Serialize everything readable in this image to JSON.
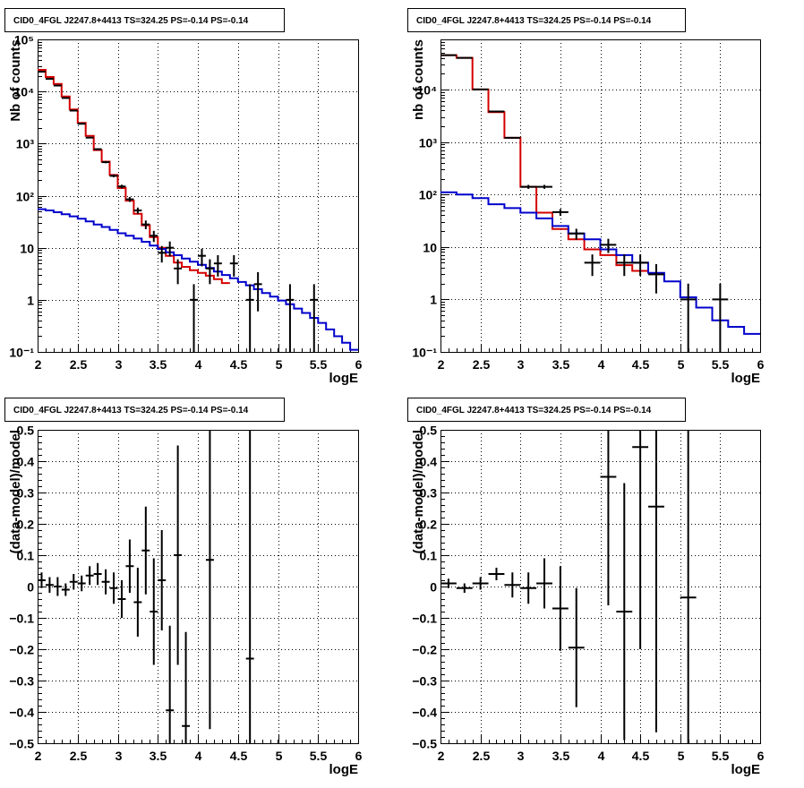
{
  "chart_data": [
    {
      "type": "step",
      "title": "CID0_4FGL J2247.8+4413 TS=324.25 PS=-0.14 PS=-0.14",
      "xlabel": "logE",
      "ylabel": "Nb of counts",
      "xlim": [
        2,
        6
      ],
      "ylim": [
        0.1,
        100000
      ],
      "yscale": "log",
      "grid": true,
      "xticks": [
        "2",
        "2.5",
        "3",
        "3.5",
        "4",
        "4.5",
        "5",
        "5.5",
        "6"
      ],
      "yticks": [
        {
          "v": 0.1,
          "label": "10⁻¹"
        },
        {
          "v": 1,
          "label": "1"
        },
        {
          "v": 10,
          "label": "10"
        },
        {
          "v": 100,
          "label": "10²"
        },
        {
          "v": 1000,
          "label": "10³"
        },
        {
          "v": 10000,
          "label": "10⁴"
        },
        {
          "v": 100000,
          "label": "10⁵"
        }
      ],
      "bin_edges": [
        2.0,
        2.1,
        2.2,
        2.3,
        2.4,
        2.5,
        2.6,
        2.7,
        2.8,
        2.9,
        3.0,
        3.1,
        3.2,
        3.3,
        3.4,
        3.5,
        3.6,
        3.7,
        3.8,
        3.9,
        4.0,
        4.1,
        4.2,
        4.3,
        4.4,
        4.5,
        4.6,
        4.7,
        4.8,
        4.9,
        5.0,
        5.1,
        5.2,
        5.3,
        5.4,
        5.5,
        5.6,
        5.7,
        5.8,
        5.9,
        6.0
      ],
      "series": [
        {
          "color": "#d40000",
          "values": [
            26000,
            19000,
            14000,
            8000,
            4500,
            2500,
            1400,
            750,
            450,
            250,
            140,
            80,
            45,
            27,
            16,
            10,
            7,
            5.2,
            4.3,
            3.7,
            3.3,
            2.9,
            2.5,
            2.1
          ]
        },
        {
          "color": "#0000cc",
          "values": [
            55,
            52,
            48,
            44,
            40,
            36,
            32,
            28,
            25,
            22,
            19,
            17,
            15,
            13,
            11,
            9.5,
            8.2,
            7.2,
            6.2,
            5.4,
            4.7,
            4.1,
            3.5,
            3.0,
            2.6,
            2.2,
            1.9,
            1.6,
            1.35,
            1.15,
            0.97,
            0.82,
            0.68,
            0.56,
            0.45,
            0.36,
            0.27,
            0.2,
            0.15,
            0.11
          ]
        }
      ],
      "points": [
        {
          "x": 2.05,
          "y": 24000,
          "ey": 160
        },
        {
          "x": 2.15,
          "y": 17500,
          "ey": 130
        },
        {
          "x": 2.25,
          "y": 13000,
          "ey": 115
        },
        {
          "x": 2.35,
          "y": 7500,
          "ey": 85
        },
        {
          "x": 2.45,
          "y": 4300,
          "ey": 65
        },
        {
          "x": 2.55,
          "y": 2400,
          "ey": 50
        },
        {
          "x": 2.65,
          "y": 1300,
          "ey": 36
        },
        {
          "x": 2.75,
          "y": 780,
          "ey": 28
        },
        {
          "x": 2.85,
          "y": 440,
          "ey": 21
        },
        {
          "x": 2.95,
          "y": 240,
          "ey": 15
        },
        {
          "x": 3.05,
          "y": 150,
          "ey": 12
        },
        {
          "x": 3.15,
          "y": 85,
          "ey": 9
        },
        {
          "x": 3.25,
          "y": 52,
          "ey": 7
        },
        {
          "x": 3.35,
          "y": 28,
          "ey": 5.3
        },
        {
          "x": 3.45,
          "y": 17,
          "ey": 4.1
        },
        {
          "x": 3.55,
          "y": 8,
          "ey": 2.8
        },
        {
          "x": 3.65,
          "y": 10,
          "ey": 3.2
        },
        {
          "x": 3.75,
          "y": 4,
          "ey": 2
        },
        {
          "x": 3.95,
          "y": 1,
          "ey": 1
        },
        {
          "x": 4.05,
          "y": 7,
          "ey": 2.6
        },
        {
          "x": 4.15,
          "y": 4,
          "ey": 2
        },
        {
          "x": 4.25,
          "y": 5,
          "ey": 2.2
        },
        {
          "x": 4.45,
          "y": 5,
          "ey": 2.2
        },
        {
          "x": 4.65,
          "y": 1,
          "ey": 1
        },
        {
          "x": 4.75,
          "y": 2,
          "ey": 1.4
        },
        {
          "x": 5.15,
          "y": 1,
          "ey": 1
        },
        {
          "x": 5.45,
          "y": 1,
          "ey": 1
        }
      ],
      "point_hw": 0.05
    },
    {
      "type": "step",
      "title": "CID0_4FGL J2247.8+4413 TS=324.25 PS=-0.14 PS=-0.14",
      "xlabel": "logE",
      "ylabel": "nb of counts",
      "xlim": [
        2,
        6
      ],
      "ylim": [
        0.1,
        90000
      ],
      "yscale": "log",
      "grid": true,
      "xticks": [
        "2",
        "2.5",
        "3",
        "3.5",
        "4",
        "4.5",
        "5",
        "5.5",
        "6"
      ],
      "yticks": [
        {
          "v": 0.1,
          "label": "10⁻¹"
        },
        {
          "v": 1,
          "label": "1"
        },
        {
          "v": 10,
          "label": "10"
        },
        {
          "v": 100,
          "label": "10²"
        },
        {
          "v": 1000,
          "label": "10³"
        },
        {
          "v": 10000,
          "label": "10⁴"
        }
      ],
      "bin_edges": [
        2.0,
        2.2,
        2.4,
        2.6,
        2.8,
        3.0,
        3.2,
        3.4,
        3.6,
        3.8,
        4.0,
        4.2,
        4.4,
        4.6,
        4.8,
        5.0,
        5.2,
        5.4,
        5.6,
        5.8,
        6.0
      ],
      "series": [
        {
          "color": "#d40000",
          "values": [
            45000,
            40000,
            10000,
            3700,
            1200,
            140,
            45,
            22,
            14,
            9,
            7,
            4.5,
            3.5
          ]
        },
        {
          "color": "#0000cc",
          "values": [
            110,
            100,
            85,
            65,
            55,
            45,
            35,
            25,
            18,
            14,
            9,
            7,
            5,
            3.2,
            2.2,
            1.1,
            0.7,
            0.4,
            0.3,
            0.22
          ]
        }
      ],
      "points": [
        {
          "x": 2.1,
          "y": 45000,
          "ey": 212
        },
        {
          "x": 2.3,
          "y": 40000,
          "ey": 200
        },
        {
          "x": 2.5,
          "y": 10000,
          "ey": 100
        },
        {
          "x": 2.7,
          "y": 3800,
          "ey": 62
        },
        {
          "x": 2.9,
          "y": 1200,
          "ey": 35
        },
        {
          "x": 3.1,
          "y": 140,
          "ey": 12
        },
        {
          "x": 3.3,
          "y": 140,
          "ey": 12
        },
        {
          "x": 3.5,
          "y": 46,
          "ey": 6.8
        },
        {
          "x": 3.7,
          "y": 18,
          "ey": 4.2
        },
        {
          "x": 3.9,
          "y": 5,
          "ey": 2.2
        },
        {
          "x": 4.1,
          "y": 11,
          "ey": 3.3
        },
        {
          "x": 4.3,
          "y": 5,
          "ey": 2.2
        },
        {
          "x": 4.5,
          "y": 5,
          "ey": 2.2
        },
        {
          "x": 4.7,
          "y": 3,
          "ey": 1.7
        },
        {
          "x": 5.1,
          "y": 1,
          "ey": 1
        },
        {
          "x": 5.5,
          "y": 1,
          "ey": 1
        }
      ],
      "point_hw": 0.1
    },
    {
      "type": "scatter",
      "title": "CID0_4FGL J2247.8+4413 TS=324.25 PS=-0.14 PS=-0.14",
      "xlabel": "logE",
      "ylabel": "(data-model)/model",
      "xlim": [
        2,
        6
      ],
      "ylim": [
        -0.5,
        0.5
      ],
      "yscale": "linear",
      "grid": true,
      "xticks": [
        "2",
        "2.5",
        "3",
        "3.5",
        "4",
        "4.5",
        "5",
        "5.5",
        "6"
      ],
      "yticks": [
        {
          "v": -0.5,
          "label": "−0.5"
        },
        {
          "v": -0.4,
          "label": "−0.4"
        },
        {
          "v": -0.3,
          "label": "−0.3"
        },
        {
          "v": -0.2,
          "label": "−0.2"
        },
        {
          "v": -0.1,
          "label": "−0.1"
        },
        {
          "v": 0,
          "label": "0"
        },
        {
          "v": 0.1,
          "label": "0.1"
        },
        {
          "v": 0.2,
          "label": "0.2"
        },
        {
          "v": 0.3,
          "label": "0.3"
        },
        {
          "v": 0.4,
          "label": "0.4"
        },
        {
          "v": 0.5,
          "label": "0.5"
        }
      ],
      "points": [
        {
          "x": 2.05,
          "y": 0.02,
          "ey": 0.025
        },
        {
          "x": 2.15,
          "y": 0.005,
          "ey": 0.025
        },
        {
          "x": 2.25,
          "y": 0.0,
          "ey": 0.03
        },
        {
          "x": 2.35,
          "y": -0.01,
          "ey": 0.02
        },
        {
          "x": 2.45,
          "y": 0.015,
          "ey": 0.025
        },
        {
          "x": 2.55,
          "y": 0.01,
          "ey": 0.025
        },
        {
          "x": 2.65,
          "y": 0.035,
          "ey": 0.03
        },
        {
          "x": 2.75,
          "y": 0.04,
          "ey": 0.035
        },
        {
          "x": 2.85,
          "y": 0.015,
          "ey": 0.04
        },
        {
          "x": 2.95,
          "y": -0.005,
          "ey": 0.05
        },
        {
          "x": 3.05,
          "y": -0.04,
          "ey": 0.06
        },
        {
          "x": 3.15,
          "y": 0.065,
          "ey": 0.085
        },
        {
          "x": 3.25,
          "y": -0.05,
          "ey": 0.11
        },
        {
          "x": 3.35,
          "y": 0.115,
          "ey": 0.14
        },
        {
          "x": 3.45,
          "y": -0.08,
          "ey": 0.17
        },
        {
          "x": 3.55,
          "y": 0.02,
          "ey": 0.16
        },
        {
          "x": 3.65,
          "y": -0.395,
          "ey": 0.27
        },
        {
          "x": 3.75,
          "y": 0.1,
          "ey": 0.35
        },
        {
          "x": 3.85,
          "y": -0.445,
          "ey": 0.3
        },
        {
          "x": 4.15,
          "y": 0.085,
          "ey": 0.54
        },
        {
          "x": 4.65,
          "y": -0.23,
          "ey": 1.0
        }
      ],
      "point_hw": 0.05
    },
    {
      "type": "scatter",
      "title": "CID0_4FGL J2247.8+4413 TS=324.25 PS=-0.14 PS=-0.14",
      "xlabel": "logE",
      "ylabel": "(data-model)/model",
      "xlim": [
        2,
        6
      ],
      "ylim": [
        -0.5,
        0.5
      ],
      "yscale": "linear",
      "grid": true,
      "xticks": [
        "2",
        "2.5",
        "3",
        "3.5",
        "4",
        "4.5",
        "5",
        "5.5",
        "6"
      ],
      "yticks": [
        {
          "v": -0.5,
          "label": "−0.5"
        },
        {
          "v": -0.4,
          "label": "−0.4"
        },
        {
          "v": -0.3,
          "label": "−0.3"
        },
        {
          "v": -0.2,
          "label": "−0.2"
        },
        {
          "v": -0.1,
          "label": "−0.1"
        },
        {
          "v": 0,
          "label": "0"
        },
        {
          "v": 0.1,
          "label": "0.1"
        },
        {
          "v": 0.2,
          "label": "0.2"
        },
        {
          "v": 0.3,
          "label": "0.3"
        },
        {
          "v": 0.4,
          "label": "0.4"
        },
        {
          "v": 0.5,
          "label": "0.5"
        }
      ],
      "points": [
        {
          "x": 2.1,
          "y": 0.01,
          "ey": 0.015
        },
        {
          "x": 2.3,
          "y": -0.005,
          "ey": 0.015
        },
        {
          "x": 2.5,
          "y": 0.01,
          "ey": 0.02
        },
        {
          "x": 2.7,
          "y": 0.04,
          "ey": 0.02
        },
        {
          "x": 2.9,
          "y": 0.005,
          "ey": 0.04
        },
        {
          "x": 3.1,
          "y": -0.005,
          "ey": 0.05
        },
        {
          "x": 3.3,
          "y": 0.01,
          "ey": 0.08
        },
        {
          "x": 3.5,
          "y": -0.07,
          "ey": 0.135
        },
        {
          "x": 3.7,
          "y": -0.195,
          "ey": 0.19
        },
        {
          "x": 4.1,
          "y": 0.35,
          "ey": 0.41
        },
        {
          "x": 4.3,
          "y": -0.08,
          "ey": 0.41
        },
        {
          "x": 4.5,
          "y": 0.445,
          "ey": 0.645
        },
        {
          "x": 4.7,
          "y": 0.255,
          "ey": 0.72
        },
        {
          "x": 5.1,
          "y": -0.035,
          "ey": 1.0
        }
      ],
      "point_hw": 0.1
    }
  ]
}
